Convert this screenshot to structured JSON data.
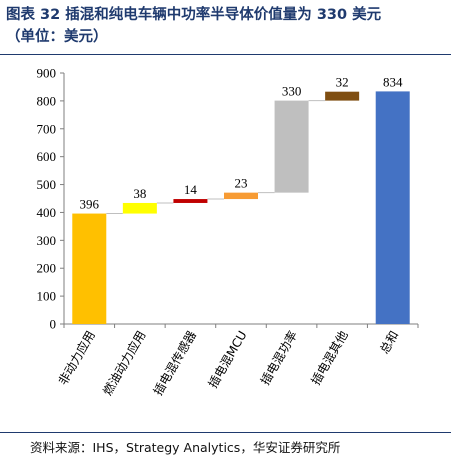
{
  "title": {
    "line1": "图表 32 插混和纯电车辆中功率半导体价值量为 330 美元",
    "line2": "（单位：美元）"
  },
  "source": "资料来源：IHS，Strategy Analytics，华安证券研究所",
  "chart_data": {
    "type": "bar",
    "subtype": "waterfall",
    "title": "",
    "xlabel": "",
    "ylabel": "",
    "ylim": [
      0,
      900
    ],
    "yticks": [
      0,
      100,
      200,
      300,
      400,
      500,
      600,
      700,
      800,
      900
    ],
    "grid": false,
    "legend": "none",
    "categories": [
      "非动力应用",
      "燃油动力应用",
      "插电混传感器",
      "插电混MCU",
      "插电混功率",
      "插电混其他",
      "总和"
    ],
    "values": [
      396,
      38,
      14,
      23,
      330,
      32,
      834
    ],
    "bases": [
      0,
      396,
      434,
      448,
      471,
      801,
      0
    ],
    "colors": [
      "#ffc000",
      "#ffff00",
      "#c00000",
      "#f79b33",
      "#bfbfbf",
      "#7f4e11",
      "#4472c4"
    ]
  }
}
